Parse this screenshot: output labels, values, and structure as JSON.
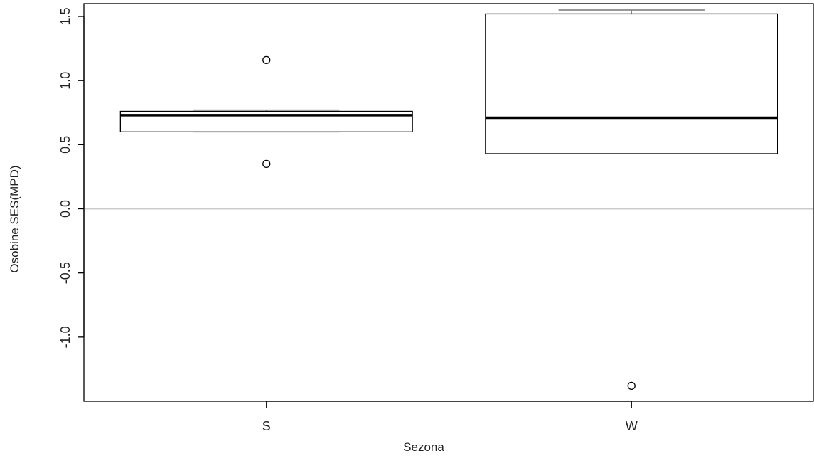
{
  "chart_data": {
    "type": "boxplot",
    "title": "",
    "xlabel": "Sezona",
    "ylabel": "Osobine SES(MPD)",
    "categories": [
      "S",
      "W"
    ],
    "ylim": [
      -1.5,
      1.6
    ],
    "y_ticks": [
      -1.0,
      -0.5,
      0.0,
      0.5,
      1.0,
      1.5
    ],
    "y_tick_labels": [
      "-1.0",
      "-0.5",
      "0.0",
      "0.5",
      "1.0",
      "1.5"
    ],
    "reference_line": {
      "y": 0.0,
      "color": "#cccccc"
    },
    "boxes": [
      {
        "category": "S",
        "whisker_low": 0.6,
        "q1": 0.6,
        "median": 0.73,
        "q3": 0.76,
        "whisker_high": 0.77,
        "outliers": [
          1.16,
          0.35
        ]
      },
      {
        "category": "W",
        "whisker_low": 0.43,
        "q1": 0.43,
        "median": 0.71,
        "q3": 1.52,
        "whisker_high": 1.55,
        "outliers": [
          -1.38
        ]
      }
    ],
    "grid": false,
    "legend": "none",
    "colors": {
      "box_fill": "#ffffff",
      "box_stroke": "#000000",
      "whisker": "#777777"
    }
  }
}
